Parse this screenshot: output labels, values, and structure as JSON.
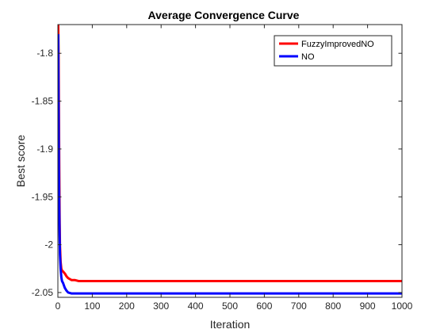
{
  "chart_data": {
    "type": "line",
    "title": "Average Convergence Curve",
    "xlabel": "Iteration",
    "ylabel": "Best score",
    "xlim": [
      0,
      1000
    ],
    "ylim": [
      -2.055,
      -1.77
    ],
    "xticks": [
      0,
      100,
      200,
      300,
      400,
      500,
      600,
      700,
      800,
      900,
      1000
    ],
    "xtick_labels": [
      "0",
      "100",
      "200",
      "300",
      "400",
      "500",
      "600",
      "700",
      "800",
      "900",
      "1000"
    ],
    "yticks": [
      -2.05,
      -2.0,
      -1.95,
      -1.9,
      -1.85,
      -1.8
    ],
    "ytick_labels": [
      "-2.05",
      "-2",
      "-1.95",
      "-1.9",
      "-1.85",
      "-1.8"
    ],
    "grid": false,
    "legend_position": "top-right",
    "series": [
      {
        "name": "FuzzyImprovedNO",
        "color": "#ff0000",
        "x": [
          1,
          2,
          3,
          4,
          5,
          6,
          8,
          10,
          12,
          15,
          20,
          25,
          30,
          35,
          40,
          50,
          60,
          80,
          100,
          1000
        ],
        "y": [
          -1.77,
          -1.8,
          -1.86,
          -1.92,
          -1.97,
          -2.0,
          -2.018,
          -2.025,
          -2.027,
          -2.028,
          -2.03,
          -2.033,
          -2.035,
          -2.036,
          -2.037,
          -2.037,
          -2.038,
          -2.038,
          -2.038,
          -2.038
        ]
      },
      {
        "name": "NO",
        "color": "#0000ff",
        "x": [
          1,
          2,
          3,
          4,
          5,
          6,
          8,
          10,
          12,
          15,
          18,
          20,
          25,
          30,
          40,
          60,
          100,
          1000
        ],
        "y": [
          -1.78,
          -1.85,
          -1.92,
          -1.96,
          -1.99,
          -2.01,
          -2.025,
          -2.034,
          -2.038,
          -2.04,
          -2.043,
          -2.045,
          -2.048,
          -2.05,
          -2.051,
          -2.051,
          -2.051,
          -2.051
        ]
      }
    ]
  }
}
